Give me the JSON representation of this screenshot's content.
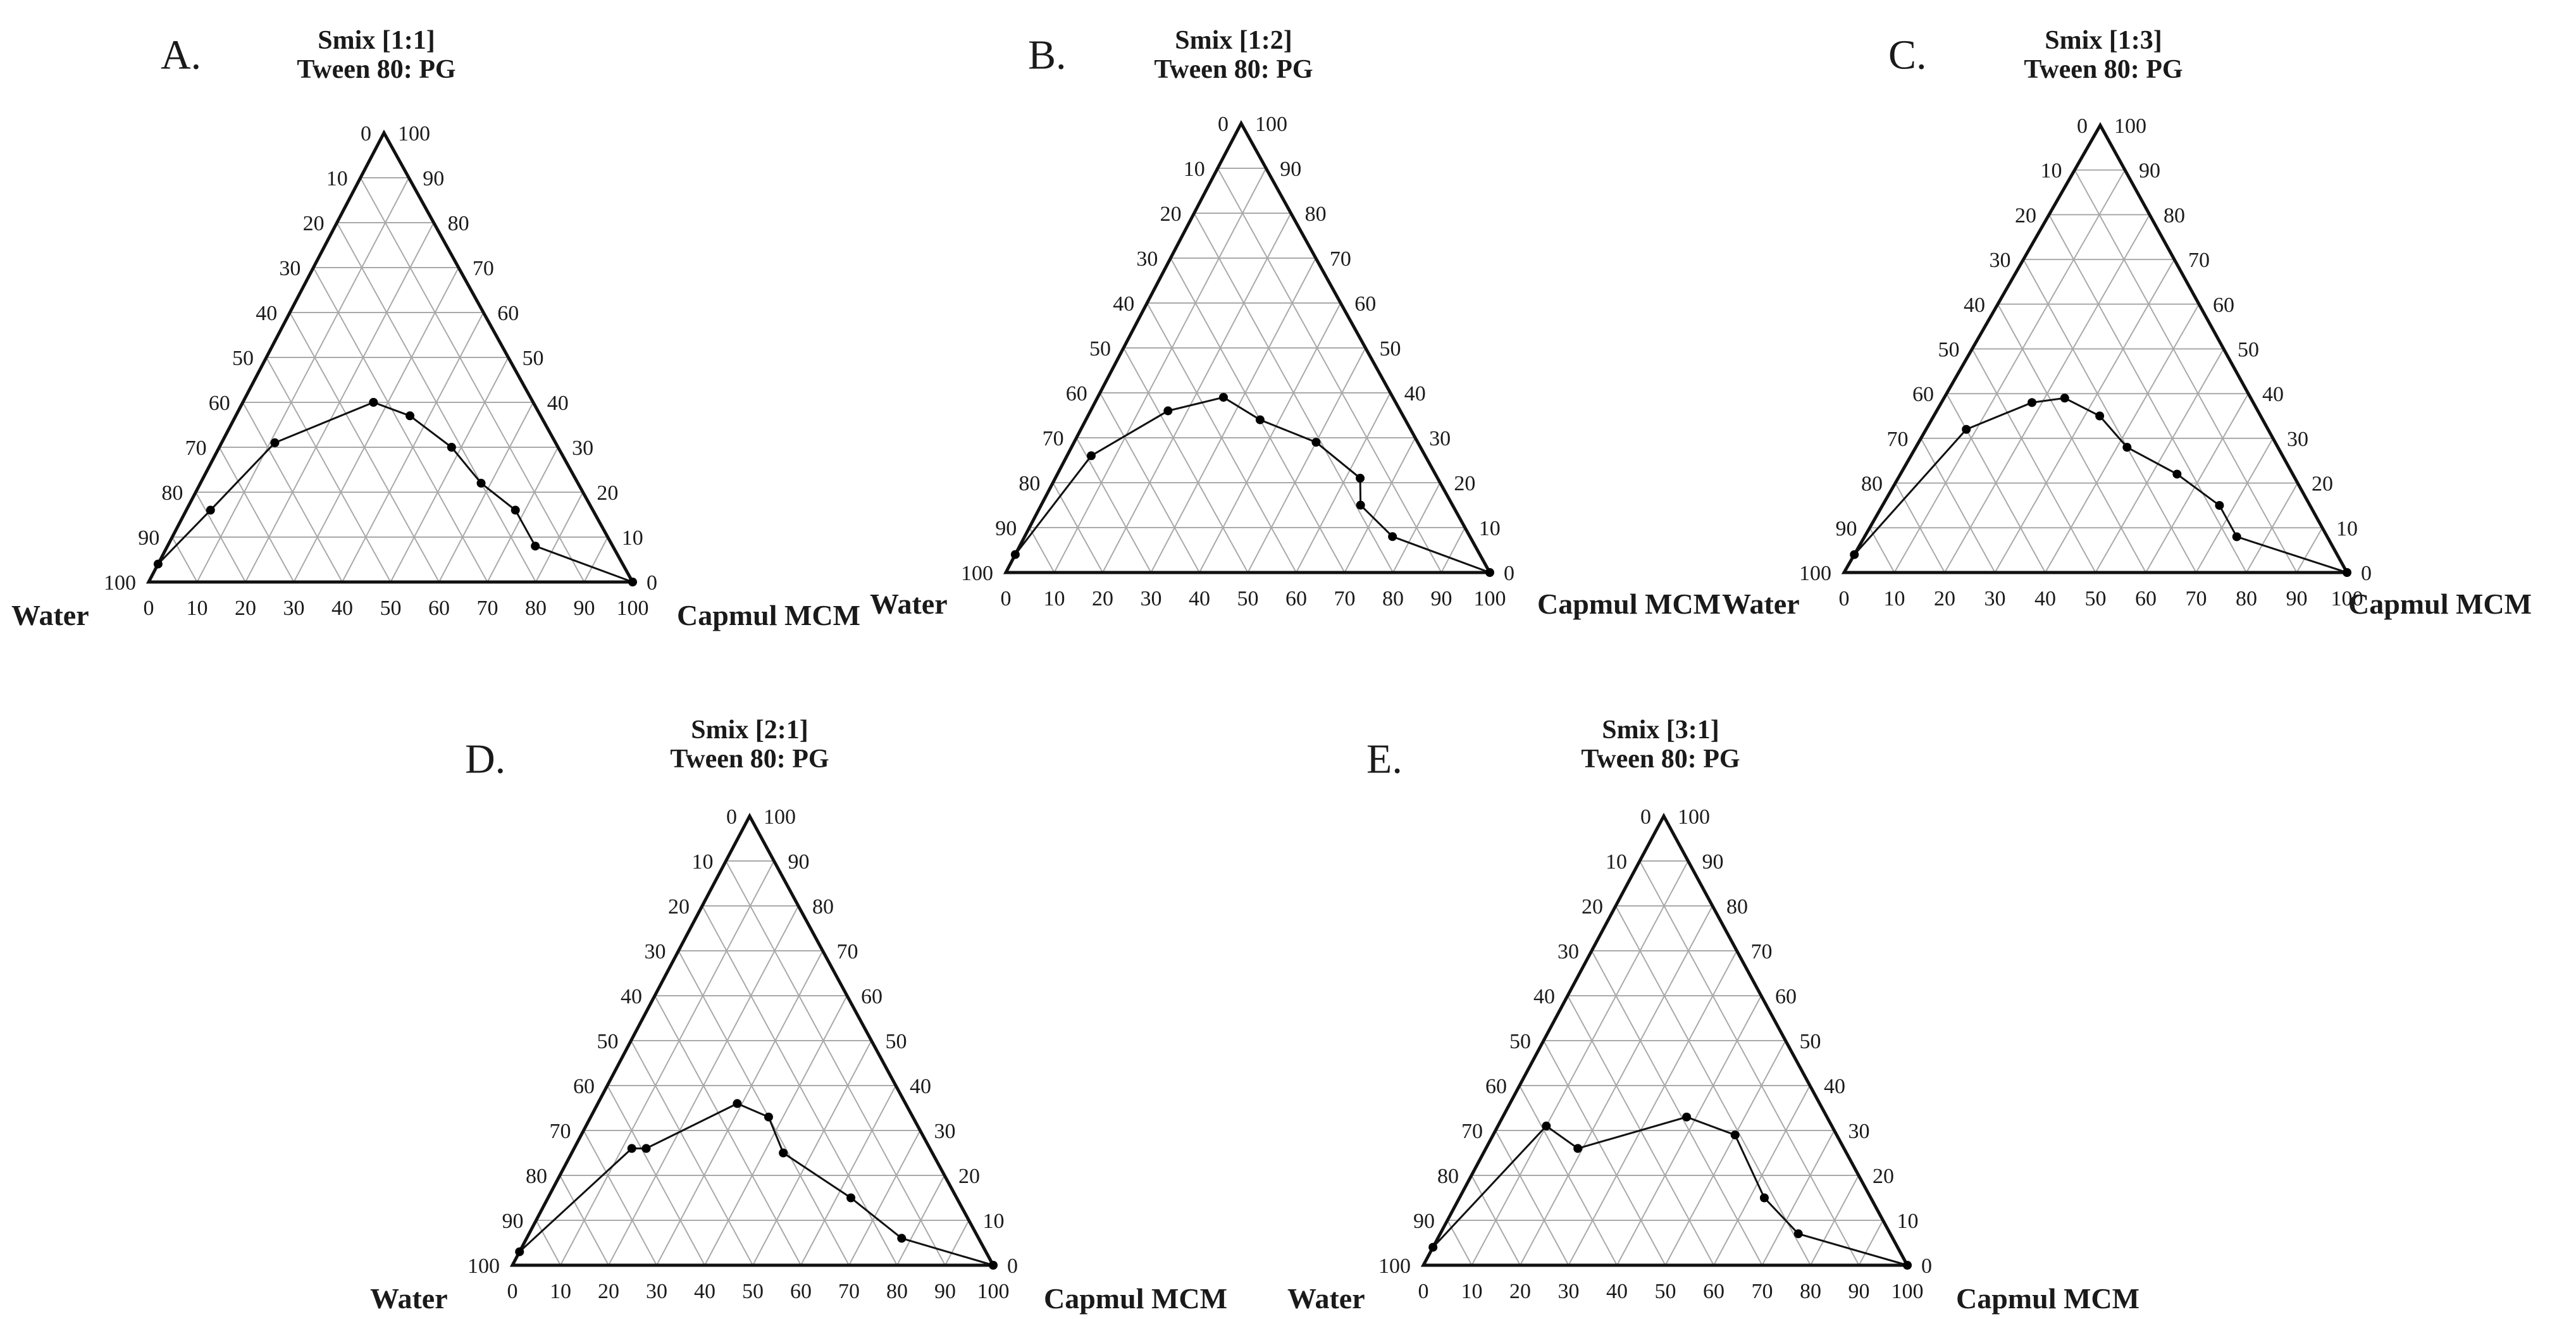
{
  "corner_labels": {
    "left": "Water",
    "right": "Capmul MCM"
  },
  "ticks": [
    "0",
    "10",
    "20",
    "30",
    "40",
    "50",
    "60",
    "70",
    "80",
    "90",
    "100"
  ],
  "colors": {
    "grid": "#a9a9a9",
    "frame": "#111111",
    "points": "#000000"
  },
  "chart_data": [
    {
      "type": "ternary-line",
      "panel": "A.",
      "title": "Smix [1:1]",
      "subtitle": "Tween 80: PG",
      "axes": {
        "top": "Smix",
        "left": "Water",
        "right": "Capmul MCM"
      },
      "points": [
        {
          "smix": 4,
          "oil": 0
        },
        {
          "smix": 16,
          "oil": 5
        },
        {
          "smix": 31,
          "oil": 11
        },
        {
          "smix": 40,
          "oil": 27
        },
        {
          "smix": 37,
          "oil": 36
        },
        {
          "smix": 30,
          "oil": 48
        },
        {
          "smix": 22,
          "oil": 58
        },
        {
          "smix": 16,
          "oil": 68
        },
        {
          "smix": 8,
          "oil": 76
        },
        {
          "smix": 0,
          "oil": 100
        }
      ]
    },
    {
      "type": "ternary-line",
      "panel": "B.",
      "title": "Smix [1:2]",
      "subtitle": "Tween 80: PG",
      "axes": {
        "top": "Smix",
        "left": "Water",
        "right": "Capmul MCM"
      },
      "points": [
        {
          "smix": 4,
          "oil": 0
        },
        {
          "smix": 26,
          "oil": 5
        },
        {
          "smix": 36,
          "oil": 16
        },
        {
          "smix": 39,
          "oil": 26
        },
        {
          "smix": 34,
          "oil": 36
        },
        {
          "smix": 29,
          "oil": 50
        },
        {
          "smix": 21,
          "oil": 63
        },
        {
          "smix": 15,
          "oil": 66
        },
        {
          "smix": 8,
          "oil": 76
        },
        {
          "smix": 0,
          "oil": 100
        }
      ]
    },
    {
      "type": "ternary-line",
      "panel": "C.",
      "title": "Smix [1:3]",
      "subtitle": "Tween 80: PG",
      "axes": {
        "top": "Smix",
        "left": "Water",
        "right": "Capmul MCM"
      },
      "points": [
        {
          "smix": 4,
          "oil": 0
        },
        {
          "smix": 32,
          "oil": 8
        },
        {
          "smix": 38,
          "oil": 18
        },
        {
          "smix": 39,
          "oil": 24
        },
        {
          "smix": 35,
          "oil": 33
        },
        {
          "smix": 28,
          "oil": 42
        },
        {
          "smix": 22,
          "oil": 55
        },
        {
          "smix": 15,
          "oil": 67
        },
        {
          "smix": 8,
          "oil": 74
        },
        {
          "smix": 0,
          "oil": 100
        }
      ]
    },
    {
      "type": "ternary-line",
      "panel": "D.",
      "title": "Smix [2:1]",
      "subtitle": "Tween 80: PG",
      "axes": {
        "top": "Smix",
        "left": "Water",
        "right": "Capmul MCM"
      },
      "points": [
        {
          "smix": 3,
          "oil": 0
        },
        {
          "smix": 26,
          "oil": 12
        },
        {
          "smix": 26,
          "oil": 15
        },
        {
          "smix": 36,
          "oil": 29
        },
        {
          "smix": 33,
          "oil": 37
        },
        {
          "smix": 25,
          "oil": 44
        },
        {
          "smix": 15,
          "oil": 63
        },
        {
          "smix": 6,
          "oil": 78
        },
        {
          "smix": 0,
          "oil": 100
        }
      ]
    },
    {
      "type": "ternary-line",
      "panel": "E.",
      "title": "Smix [3:1]",
      "subtitle": "Tween 80: PG",
      "axes": {
        "top": "Smix",
        "left": "Water",
        "right": "Capmul MCM"
      },
      "points": [
        {
          "smix": 4,
          "oil": 0
        },
        {
          "smix": 31,
          "oil": 10
        },
        {
          "smix": 26,
          "oil": 19
        },
        {
          "smix": 33,
          "oil": 38
        },
        {
          "smix": 29,
          "oil": 50
        },
        {
          "smix": 15,
          "oil": 63
        },
        {
          "smix": 7,
          "oil": 74
        },
        {
          "smix": 0,
          "oil": 100
        }
      ]
    }
  ]
}
